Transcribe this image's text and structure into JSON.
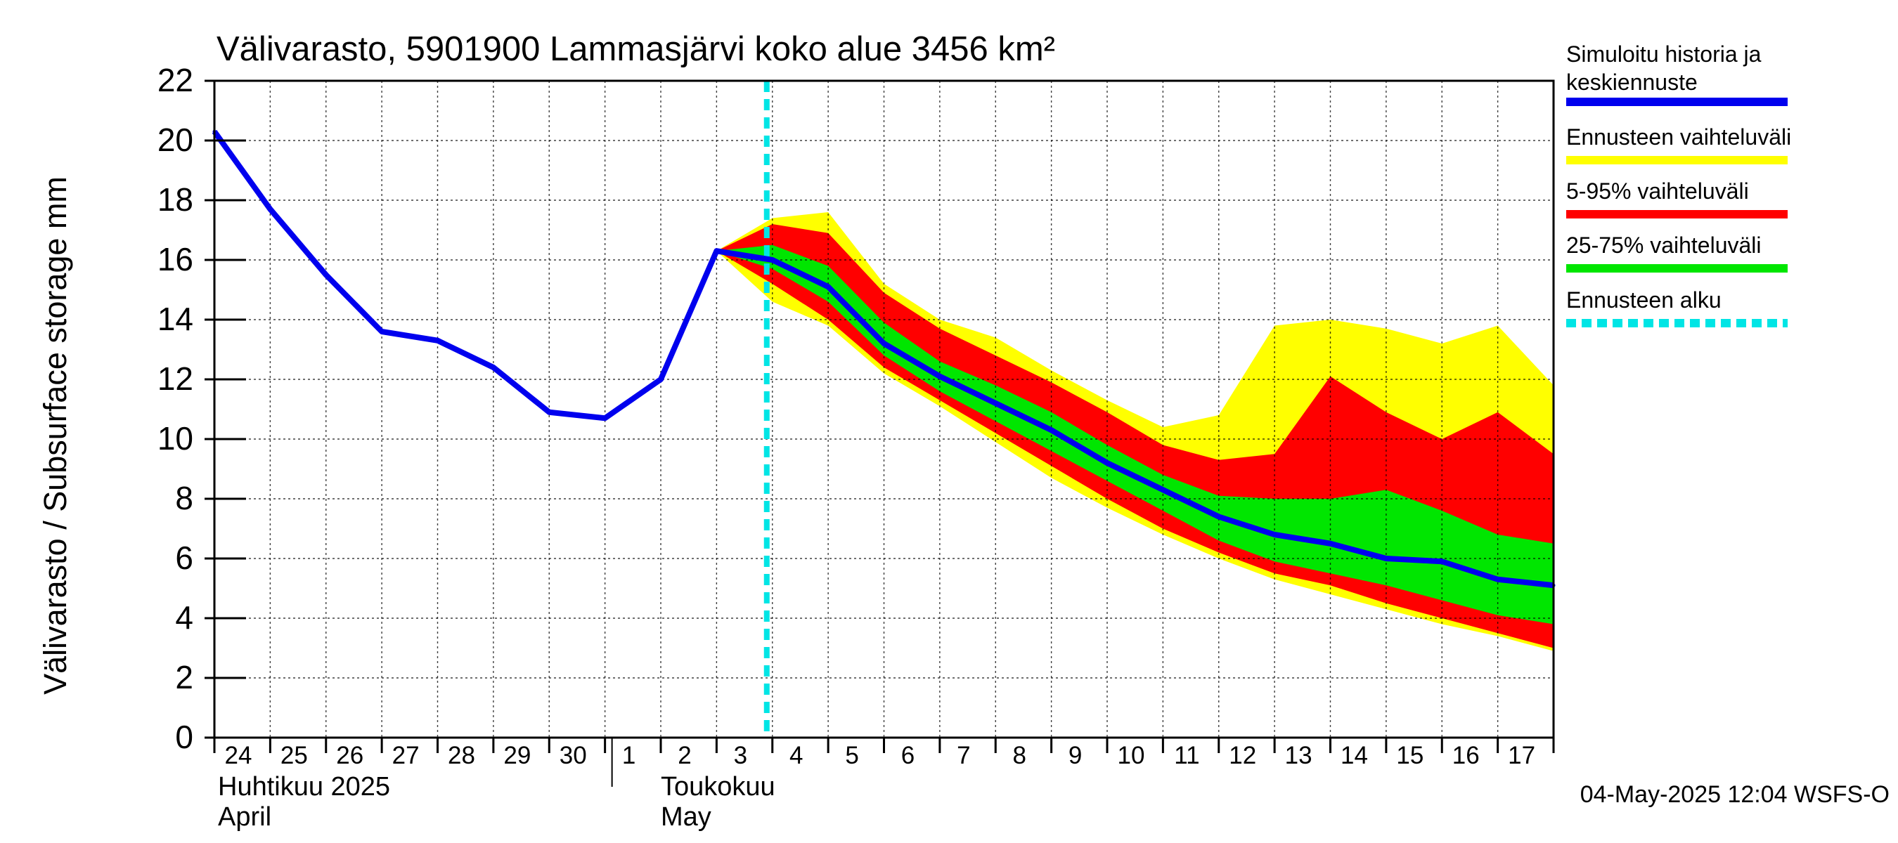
{
  "chart_data": {
    "type": "area",
    "title": "Välivarasto, 5901900 Lammasjärvi koko alue 3456 km²",
    "ylabel": "Välivarasto / Subsurface storage  mm",
    "ylim": [
      0,
      22
    ],
    "yticks": [
      "0",
      "2",
      "4",
      "6",
      "8",
      "10",
      "12",
      "14",
      "16",
      "18",
      "20",
      "22"
    ],
    "x_day_range": [
      0,
      24
    ],
    "x_tick_labels": [
      "24",
      "25",
      "26",
      "27",
      "28",
      "29",
      "30",
      "1",
      "2",
      "3",
      "4",
      "5",
      "6",
      "7",
      "8",
      "9",
      "10",
      "11",
      "12",
      "13",
      "14",
      "15",
      "16",
      "17"
    ],
    "month_labels": [
      {
        "line1": "Huhtikuu  2025",
        "line2": "April",
        "day": 0
      },
      {
        "line1": "Toukokuu",
        "line2": "May",
        "day": 8
      }
    ],
    "forecast_start_day": 10,
    "grid": true,
    "x": [
      0,
      1,
      2,
      3,
      4,
      5,
      6,
      7,
      8,
      9,
      10,
      11,
      12,
      13,
      14,
      15,
      16,
      17,
      18,
      19,
      20,
      21,
      22,
      23,
      24
    ],
    "series": [
      {
        "name": "Ennusteen vaihteluväli",
        "color": "#ffff00",
        "kind": "band",
        "start": 9,
        "upper": [
          16.3,
          17.4,
          17.6,
          15.2,
          14.0,
          13.4,
          12.3,
          11.3,
          10.4,
          10.8,
          13.8,
          14.0,
          13.7,
          13.2,
          13.8,
          11.8
        ],
        "lower": [
          16.3,
          14.6,
          13.8,
          12.2,
          11.1,
          9.9,
          8.7,
          7.7,
          6.8,
          6.0,
          5.3,
          4.8,
          4.3,
          3.8,
          3.4,
          2.9
        ]
      },
      {
        "name": "5-95% vaihteluväli",
        "color": "#ff0000",
        "kind": "band",
        "start": 9,
        "upper": [
          16.3,
          17.2,
          16.9,
          14.9,
          13.7,
          12.8,
          11.9,
          10.9,
          9.8,
          9.3,
          9.5,
          12.1,
          10.9,
          10.0,
          10.9,
          9.5
        ],
        "lower": [
          16.3,
          15.2,
          14.0,
          12.4,
          11.3,
          10.2,
          9.1,
          8.0,
          7.0,
          6.2,
          5.5,
          5.1,
          4.5,
          4.0,
          3.5,
          3.0
        ]
      },
      {
        "name": "25-75% vaihteluväli",
        "color": "#00e600",
        "kind": "band",
        "start": 9,
        "upper": [
          16.3,
          16.5,
          15.8,
          13.9,
          12.6,
          11.8,
          10.9,
          9.8,
          8.8,
          8.1,
          8.0,
          8.0,
          8.3,
          7.6,
          6.8,
          6.5
        ],
        "lower": [
          16.3,
          15.7,
          14.6,
          12.8,
          11.6,
          10.6,
          9.6,
          8.6,
          7.6,
          6.6,
          5.9,
          5.5,
          5.1,
          4.6,
          4.1,
          3.8
        ]
      },
      {
        "name": "Simuloitu historia ja keskiennuste",
        "color": "#0000ee",
        "kind": "line",
        "start": 0,
        "values": [
          20.3,
          17.7,
          15.5,
          13.6,
          13.3,
          12.4,
          10.9,
          10.7,
          12.0,
          16.3,
          16.0,
          15.1,
          13.2,
          12.1,
          11.2,
          10.3,
          9.2,
          8.3,
          7.4,
          6.8,
          6.5,
          6.0,
          5.9,
          5.3,
          5.1
        ]
      }
    ],
    "legend": {
      "placement": "right",
      "items": [
        {
          "line1": "Simuloitu historia ja",
          "line2": "keskiennuste",
          "color": "#0000ee",
          "style": "solid"
        },
        {
          "line1": "Ennusteen vaihteluväli",
          "color": "#ffff00",
          "style": "solid"
        },
        {
          "line1": "5-95% vaihteluväli",
          "color": "#ff0000",
          "style": "solid"
        },
        {
          "line1": "25-75% vaihteluväli",
          "color": "#00e600",
          "style": "solid"
        },
        {
          "line1": "Ennusteen alku",
          "color": "#00e5e5",
          "style": "dashed"
        }
      ]
    },
    "footer": "04-May-2025 12:04 WSFS-O"
  }
}
